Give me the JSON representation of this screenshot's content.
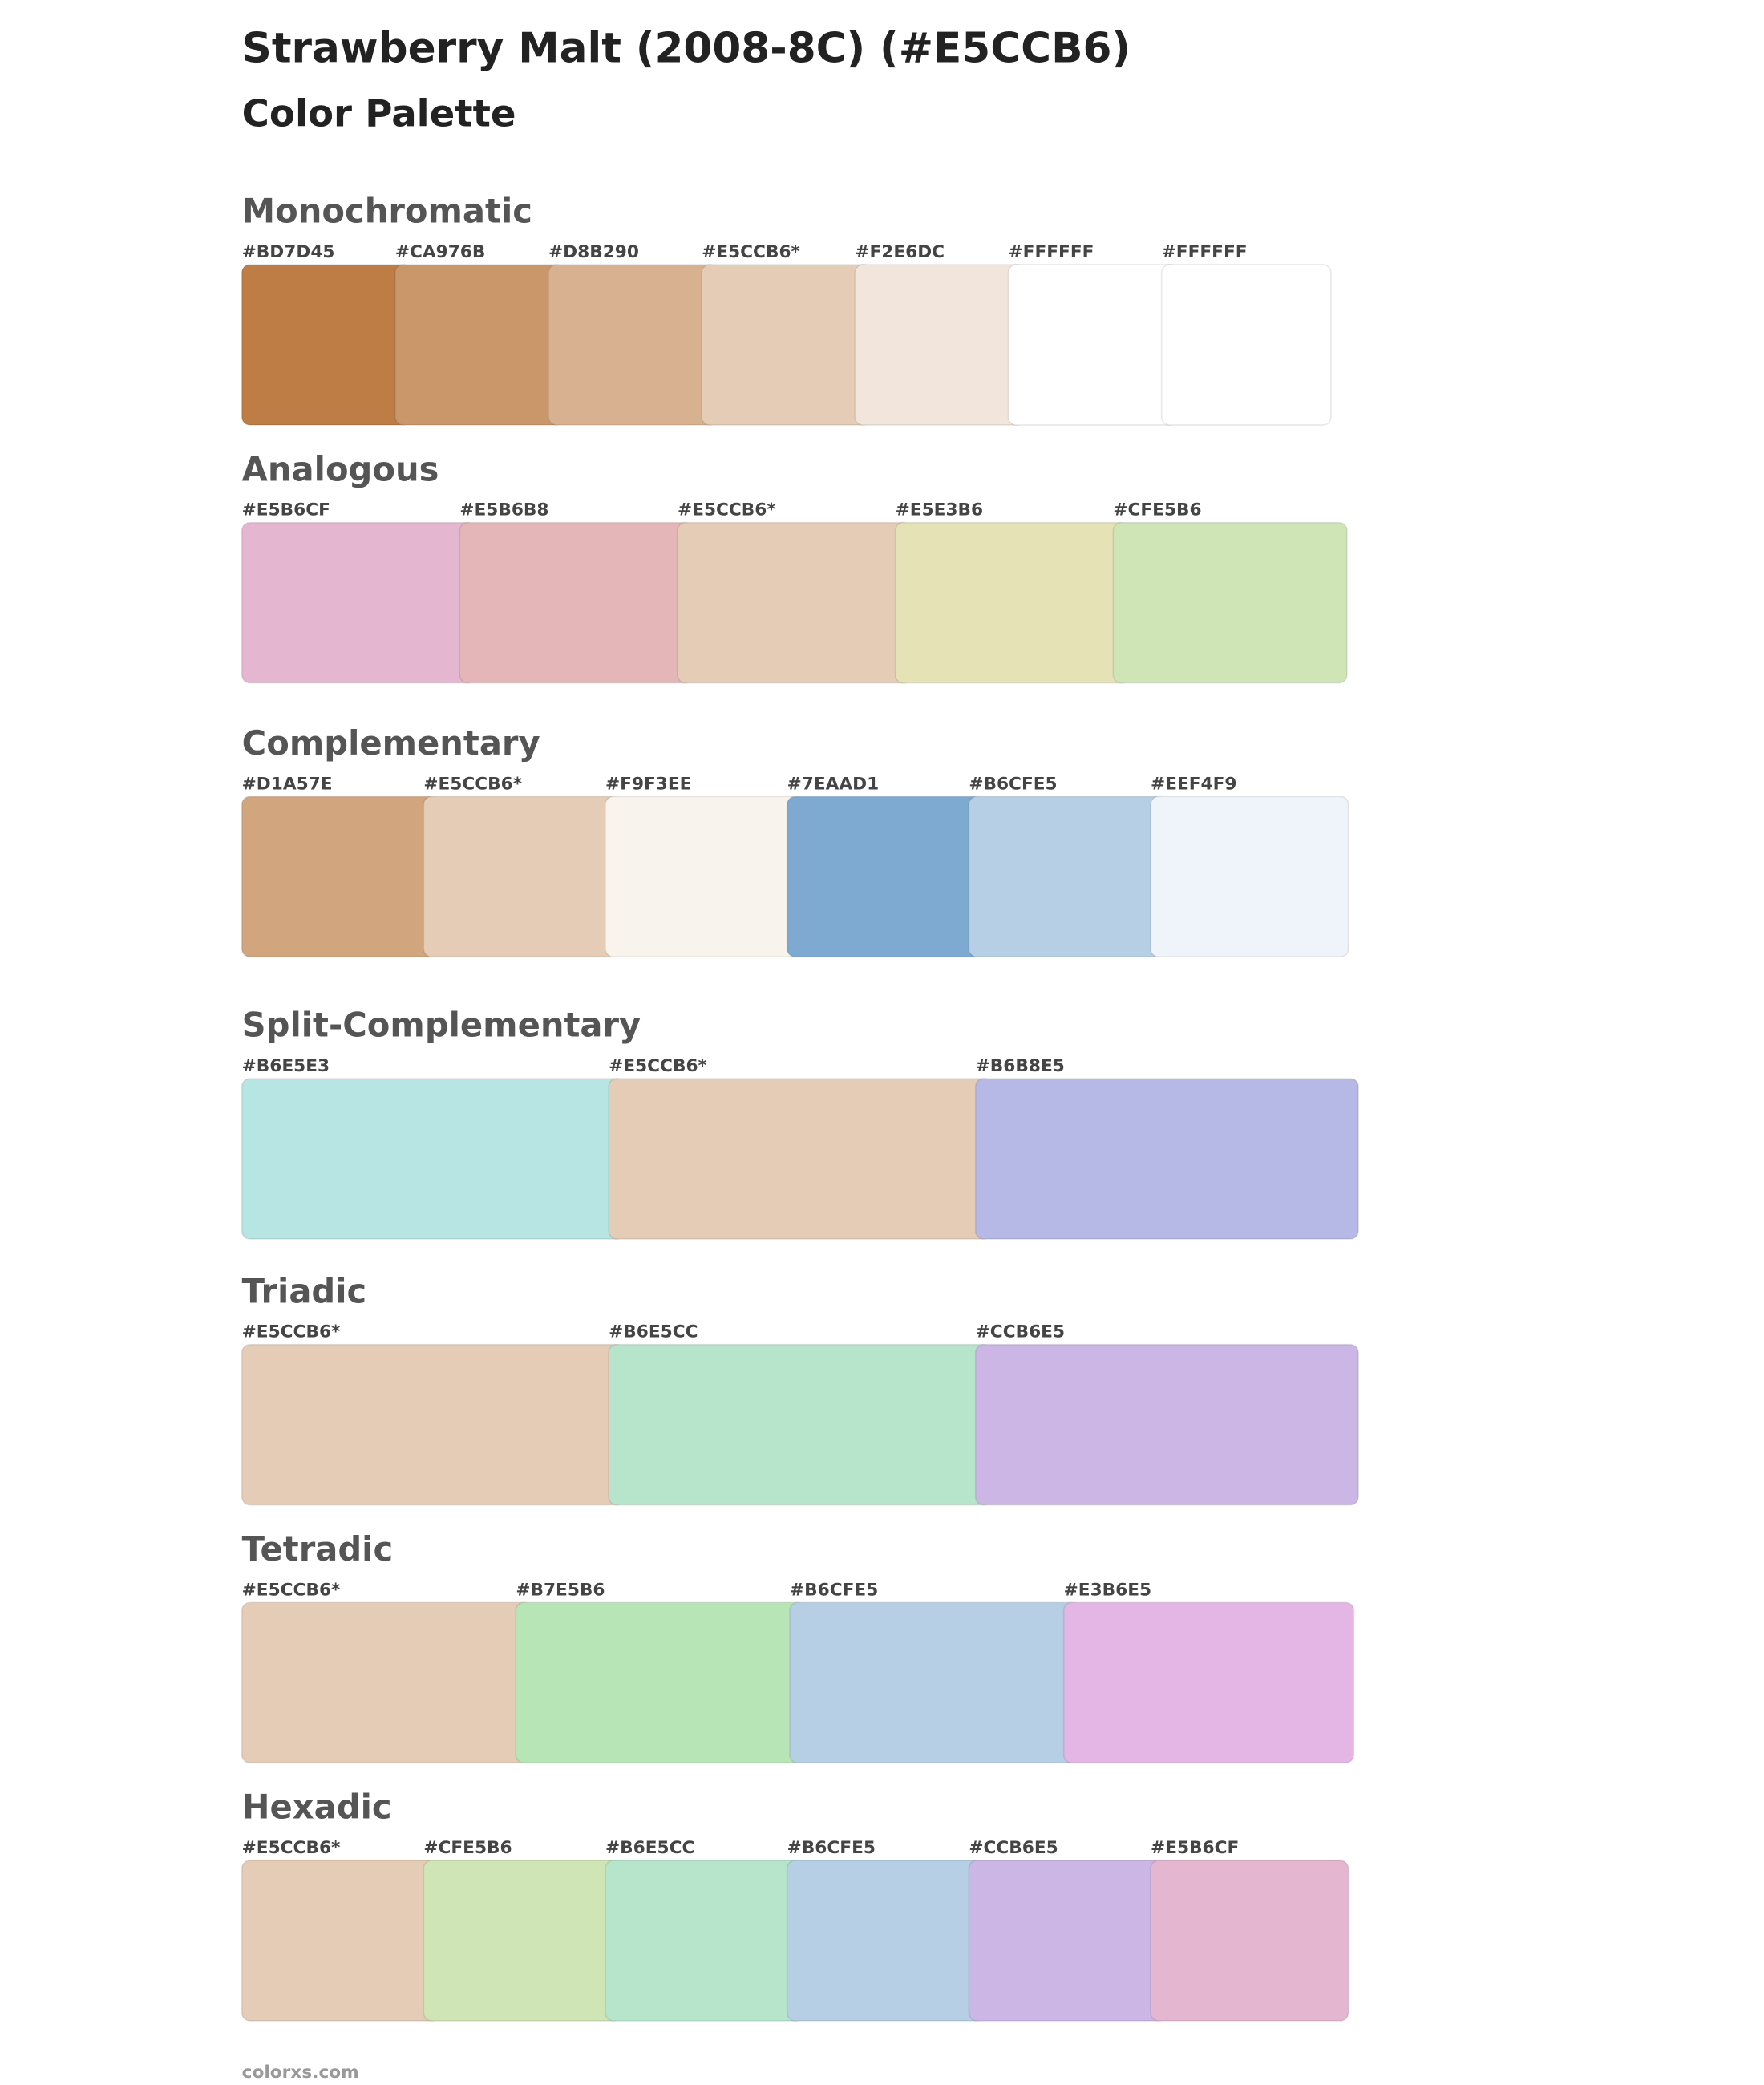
{
  "header": {
    "title": "Strawberry Malt (2008-8C) (#E5CCB6)",
    "subtitle": "Color Palette"
  },
  "sections": [
    {
      "name": "Monochromatic",
      "swatches": [
        {
          "label": "#BD7D45",
          "color": "#BD7D45"
        },
        {
          "label": "#CA976B",
          "color": "#CA976B"
        },
        {
          "label": "#D8B290",
          "color": "#D8B290"
        },
        {
          "label": "#E5CCB6*",
          "color": "#E5CCB6"
        },
        {
          "label": "#F2E6DC",
          "color": "#F2E6DC"
        },
        {
          "label": "#FFFFFF",
          "color": "#FFFFFF"
        },
        {
          "label": "#FFFFFF",
          "color": "#FFFFFF"
        }
      ]
    },
    {
      "name": "Analogous",
      "swatches": [
        {
          "label": "#E5B6CF",
          "color": "#E5B6CF"
        },
        {
          "label": "#E5B6B8",
          "color": "#E5B6B8"
        },
        {
          "label": "#E5CCB6*",
          "color": "#E5CCB6"
        },
        {
          "label": "#E5E3B6",
          "color": "#E5E3B6"
        },
        {
          "label": "#CFE5B6",
          "color": "#CFE5B6"
        }
      ]
    },
    {
      "name": "Complementary",
      "swatches": [
        {
          "label": "#D1A57E",
          "color": "#D1A57E"
        },
        {
          "label": "#E5CCB6*",
          "color": "#E5CCB6"
        },
        {
          "label": "#F9F3EE",
          "color": "#F9F3EE"
        },
        {
          "label": "#7EAAD1",
          "color": "#7EAAD1"
        },
        {
          "label": "#B6CFE5",
          "color": "#B6CFE5"
        },
        {
          "label": "#EEF4F9",
          "color": "#EEF4F9"
        }
      ]
    },
    {
      "name": "Split-Complementary",
      "swatches": [
        {
          "label": "#B6E5E3",
          "color": "#B6E5E3"
        },
        {
          "label": "#E5CCB6*",
          "color": "#E5CCB6"
        },
        {
          "label": "#B6B8E5",
          "color": "#B6B8E5"
        }
      ]
    },
    {
      "name": "Triadic",
      "swatches": [
        {
          "label": "#E5CCB6*",
          "color": "#E5CCB6"
        },
        {
          "label": "#B6E5CC",
          "color": "#B6E5CC"
        },
        {
          "label": "#CCB6E5",
          "color": "#CCB6E5"
        }
      ]
    },
    {
      "name": "Tetradic",
      "swatches": [
        {
          "label": "#E5CCB6*",
          "color": "#E5CCB6"
        },
        {
          "label": "#B7E5B6",
          "color": "#B7E5B6"
        },
        {
          "label": "#B6CFE5",
          "color": "#B6CFE5"
        },
        {
          "label": "#E3B6E5",
          "color": "#E3B6E5"
        }
      ]
    },
    {
      "name": "Hexadic",
      "swatches": [
        {
          "label": "#E5CCB6*",
          "color": "#E5CCB6"
        },
        {
          "label": "#CFE5B6",
          "color": "#CFE5B6"
        },
        {
          "label": "#B6E5CC",
          "color": "#B6E5CC"
        },
        {
          "label": "#B6CFE5",
          "color": "#B6CFE5"
        },
        {
          "label": "#CCB6E5",
          "color": "#CCB6E5"
        },
        {
          "label": "#E5B6CF",
          "color": "#E5B6CF"
        }
      ]
    }
  ],
  "footer": "colorxs.com"
}
